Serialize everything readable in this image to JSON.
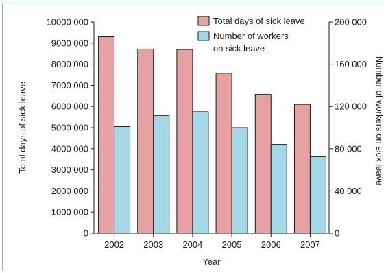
{
  "chart_data": {
    "type": "bar",
    "categories": [
      "2002",
      "2003",
      "2004",
      "2005",
      "2006",
      "2007"
    ],
    "xlabel": "Year",
    "ylabel_left": "Total days of sick leave",
    "ylabel_right": "Number of workers on sick leave",
    "ylim_left": [
      0,
      10000000
    ],
    "ylim_right": [
      0,
      200000
    ],
    "yticks_left": [
      "0",
      "1000000",
      "2000000",
      "3000000",
      "4000000",
      "5000000",
      "6000000",
      "7000000",
      "8000000",
      "9000000",
      "10000000"
    ],
    "yticks_left_labels": [
      "0",
      "1000 000",
      "2000 000",
      "3000 000",
      "4000 000",
      "5000 000",
      "6000 000",
      "7000 000",
      "8000 000",
      "9000 000",
      "10000 000"
    ],
    "yticks_right": [
      "0",
      "40000",
      "80000",
      "120000",
      "160000",
      "200000"
    ],
    "yticks_right_labels": [
      "0",
      "40 000",
      "80 000",
      "120 000",
      "160 000",
      "200 000"
    ],
    "grid": false,
    "legend_position": "top-right",
    "legend_entries": [
      "Total days of sick leave",
      "Number of workers on sick leave"
    ],
    "legend_entry_lines": [
      [
        "Total days of sick leave"
      ],
      [
        "Number of workers",
        "on sick leave"
      ]
    ],
    "series": [
      {
        "name": "Total days of sick leave",
        "axis": "left",
        "color": "#e6a2a2",
        "values": [
          9300000,
          8720000,
          8700000,
          7570000,
          6570000,
          6100000
        ]
      },
      {
        "name": "Number of workers on sick leave",
        "axis": "right",
        "color": "#a5d8e6",
        "values": [
          101000,
          111500,
          115000,
          100000,
          84000,
          72500
        ]
      }
    ]
  }
}
